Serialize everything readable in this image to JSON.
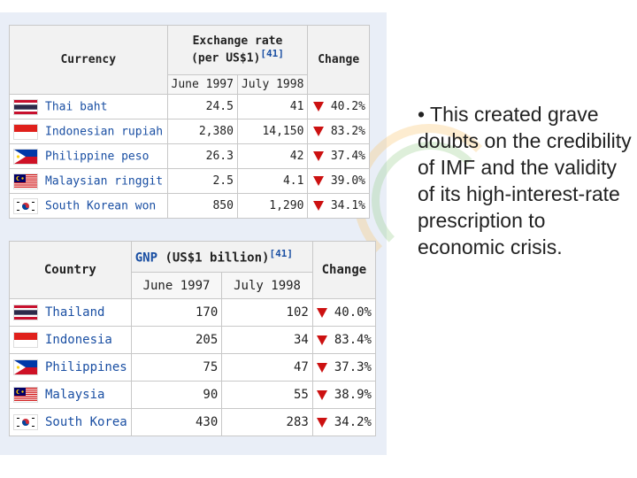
{
  "table1": {
    "header_currency": "Currency",
    "header_rate_line1": "Exchange rate",
    "header_rate_line2": "(per US$1)",
    "header_rate_ref": "[41]",
    "header_change": "Change",
    "col_june": "June 1997",
    "col_july": "July 1998",
    "rows": [
      {
        "name": "Thai baht",
        "june": "24.5",
        "july": "41",
        "change": "40.2%",
        "flag": "thailand-flag"
      },
      {
        "name": "Indonesian rupiah",
        "june": "2,380",
        "july": "14,150",
        "change": "83.2%",
        "flag": "indonesia-flag"
      },
      {
        "name": "Philippine peso",
        "june": "26.3",
        "july": "42",
        "change": "37.4%",
        "flag": "philippines-flag"
      },
      {
        "name": "Malaysian ringgit",
        "june": "2.5",
        "july": "4.1",
        "change": "39.0%",
        "flag": "malaysia-flag"
      },
      {
        "name": "South Korean won",
        "june": "850",
        "july": "1,290",
        "change": "34.1%",
        "flag": "south-korea-flag"
      }
    ]
  },
  "table2": {
    "header_country": "Country",
    "header_gdp_link": "GNP",
    "header_gdp_rest": " (US$1 billion)",
    "header_gdp_ref": "[41]",
    "header_change": "Change",
    "col_june": "June 1997",
    "col_july": "July 1998",
    "rows": [
      {
        "name": "Thailand",
        "june": "170",
        "july": "102",
        "change": "40.0%",
        "flag": "thailand-flag"
      },
      {
        "name": "Indonesia",
        "june": "205",
        "july": "34",
        "change": "83.4%",
        "flag": "indonesia-flag"
      },
      {
        "name": "Philippines",
        "june": "75",
        "july": "47",
        "change": "37.3%",
        "flag": "philippines-flag"
      },
      {
        "name": "Malaysia",
        "june": "90",
        "july": "55",
        "change": "38.9%",
        "flag": "malaysia-flag"
      },
      {
        "name": "South Korea",
        "june": "430",
        "july": "283",
        "change": "34.2%",
        "flag": "south-korea-flag"
      }
    ]
  },
  "bullet_text": "• This created grave doubts on the credibility of IMF and the validity of its high-interest-rate prescription to economic crisis."
}
